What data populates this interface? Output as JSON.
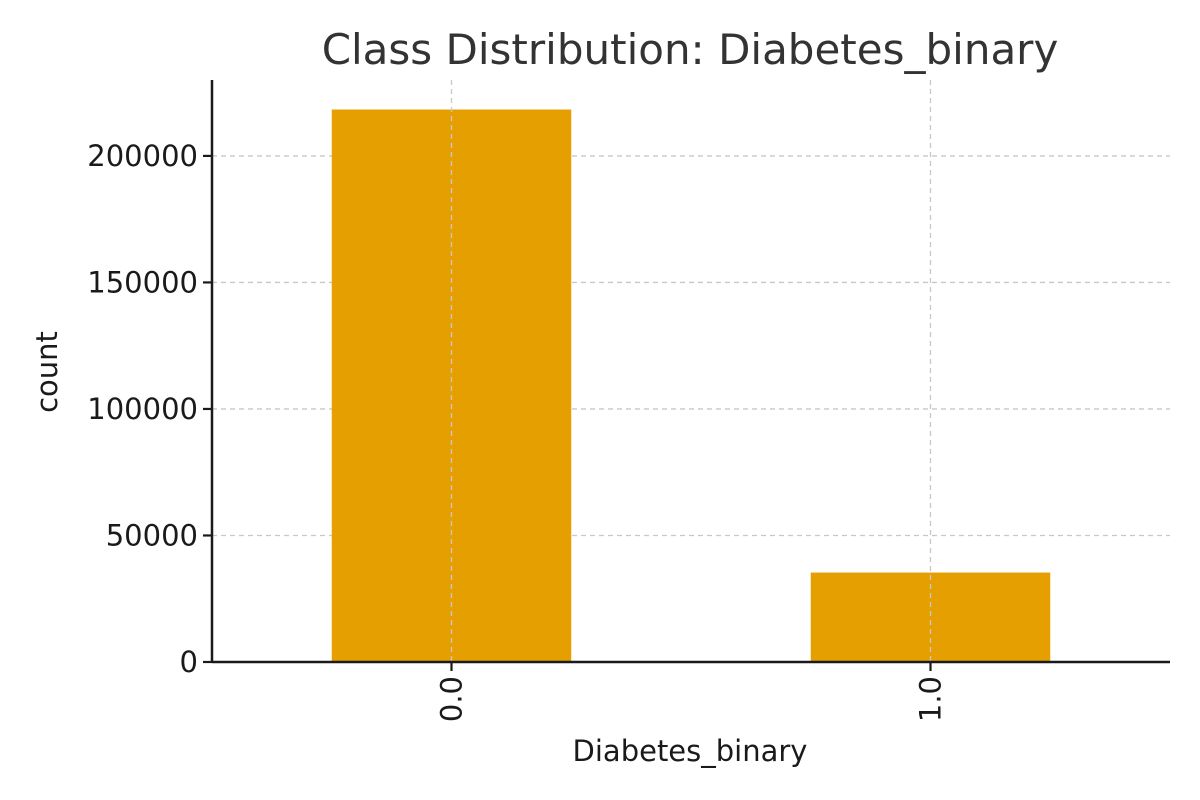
{
  "chart_data": {
    "type": "bar",
    "title": "Class Distribution: Diabetes_binary",
    "xlabel": "Diabetes_binary",
    "ylabel": "count",
    "categories": [
      "0.0",
      "1.0"
    ],
    "values": [
      218334,
      35346
    ],
    "ylim": [
      0,
      230000
    ],
    "yticks": [
      0,
      50000,
      100000,
      150000,
      200000
    ],
    "ytick_labels": [
      "0",
      "50000",
      "100000",
      "150000",
      "200000"
    ],
    "grid": true,
    "bar_color": "#E69F00",
    "xtick_rotation_deg": 90
  }
}
